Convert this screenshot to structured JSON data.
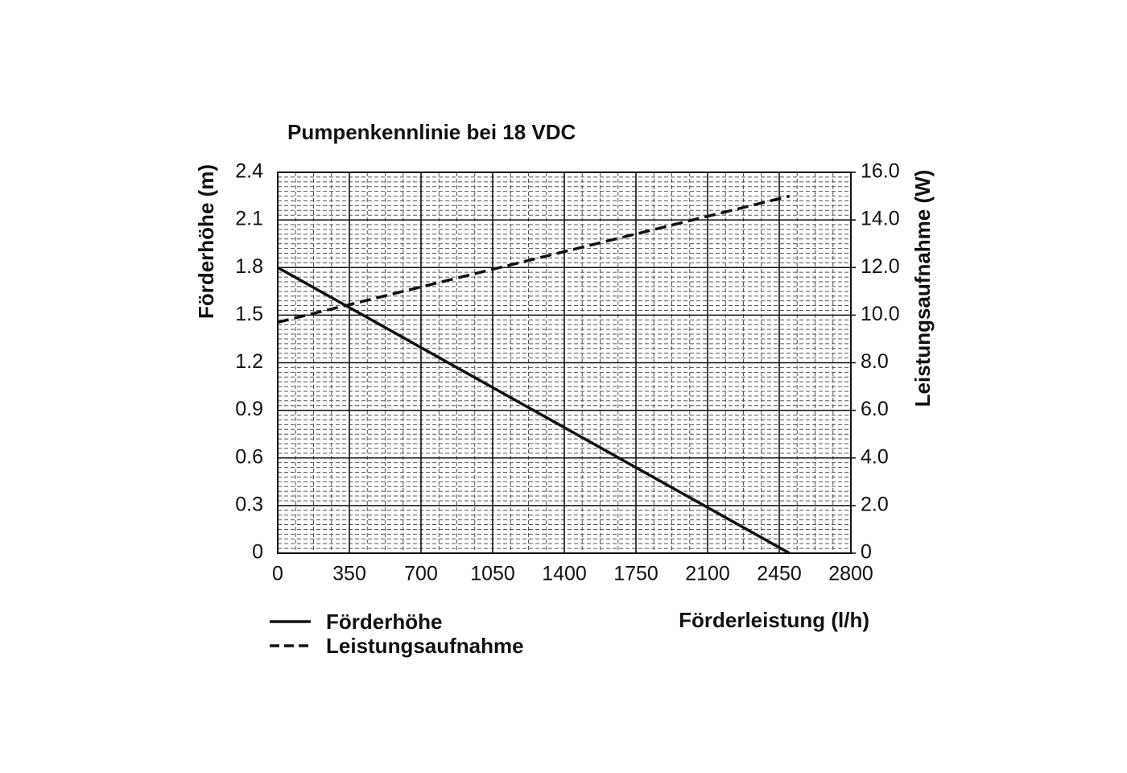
{
  "chart_data": {
    "type": "line",
    "title": "Pumpenkennlinie bei 18 VDC",
    "xlabel": "Förderleistung (l/h)",
    "ylabel": "Förderhöhe (m)",
    "y2label": "Leistungsaufnahme (W)",
    "x": [
      0,
      2500
    ],
    "series": [
      {
        "name": "Förderhöhe",
        "color": "#111111",
        "style": "solid",
        "values": [
          1.8,
          0
        ]
      },
      {
        "name": "Leistungsaufnahme",
        "color": "#111111",
        "style": "dashed",
        "axis": "y2",
        "values": [
          9.7,
          15.0
        ]
      }
    ],
    "xlim": [
      0,
      2800
    ],
    "xticks": [
      0,
      350,
      700,
      1050,
      1400,
      1750,
      2100,
      2450,
      2800
    ],
    "ylim": [
      0,
      2.4
    ],
    "yticks": [
      0,
      0.3,
      0.6,
      0.9,
      1.2,
      1.5,
      1.8,
      2.1,
      2.4
    ],
    "y2lim": [
      0,
      16
    ],
    "y2ticks": [
      0,
      {
        "value": 2,
        "label": "2.0"
      },
      {
        "value": 4,
        "label": "4.0"
      },
      {
        "value": 6,
        "label": "6.0"
      },
      {
        "value": 8,
        "label": "8.0"
      },
      {
        "value": 10,
        "label": "10.0"
      },
      {
        "value": 12,
        "label": "12.0"
      },
      {
        "value": 14,
        "label": "14.0"
      },
      {
        "value": 16,
        "label": "16.0"
      }
    ],
    "grid": true,
    "minor_grid": true,
    "legend": "bottom left"
  }
}
